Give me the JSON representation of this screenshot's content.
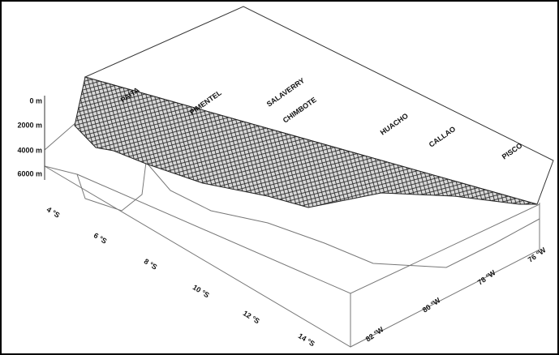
{
  "depth_axis": {
    "labels": [
      "0 m",
      "2000 m",
      "4000 m",
      "6000 m"
    ]
  },
  "latitude_axis": {
    "labels": [
      "4 °S",
      "6 °S",
      "8 °S",
      "10 °S",
      "12 °S",
      "14 °S"
    ]
  },
  "longitude_axis": {
    "labels": [
      "82 °W",
      "80 °W",
      "78 °W",
      "76 °W"
    ]
  },
  "places": [
    "PAITA",
    "PIMENTEL",
    "SALAVERRY",
    "CHIMBOTE",
    "HUACHO",
    "CALLAO",
    "PISCO"
  ]
}
